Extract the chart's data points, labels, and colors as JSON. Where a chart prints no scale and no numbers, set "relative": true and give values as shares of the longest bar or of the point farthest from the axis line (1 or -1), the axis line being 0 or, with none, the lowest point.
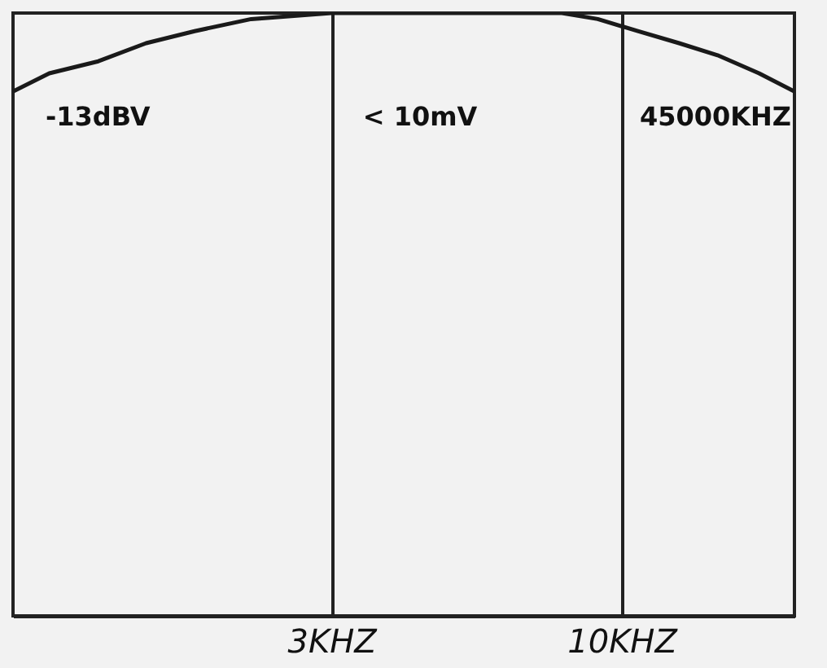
{
  "chart_data": {
    "type": "line",
    "relative": true,
    "log": "x",
    "grid": "x",
    "marker": "none",
    "line_style": "solid",
    "annotations": [
      "-13dBV",
      "< 10mV",
      "45000KHZ"
    ],
    "x": [
      0.8,
      0.93,
      1.14,
      1.39,
      1.7,
      2.15,
      3,
      4.1,
      5.66,
      7.81,
      9.06,
      10.7,
      12.7,
      14.9,
      17.7,
      20.5
    ],
    "series": [
      {
        "color": "#1a1a1a",
        "values": [
          0.87,
          0.9,
          0.92,
          0.95,
          0.97,
          0.99,
          1,
          1,
          1,
          1,
          0.99,
          0.97,
          0.95,
          0.93,
          0.9,
          0.87
        ]
      }
    ],
    "xlim": [
      0.8,
      20.5
    ],
    "xticks": [
      {
        "value": 3,
        "label": "3KHZ"
      },
      {
        "value": 10,
        "label": "10KHZ"
      }
    ]
  }
}
